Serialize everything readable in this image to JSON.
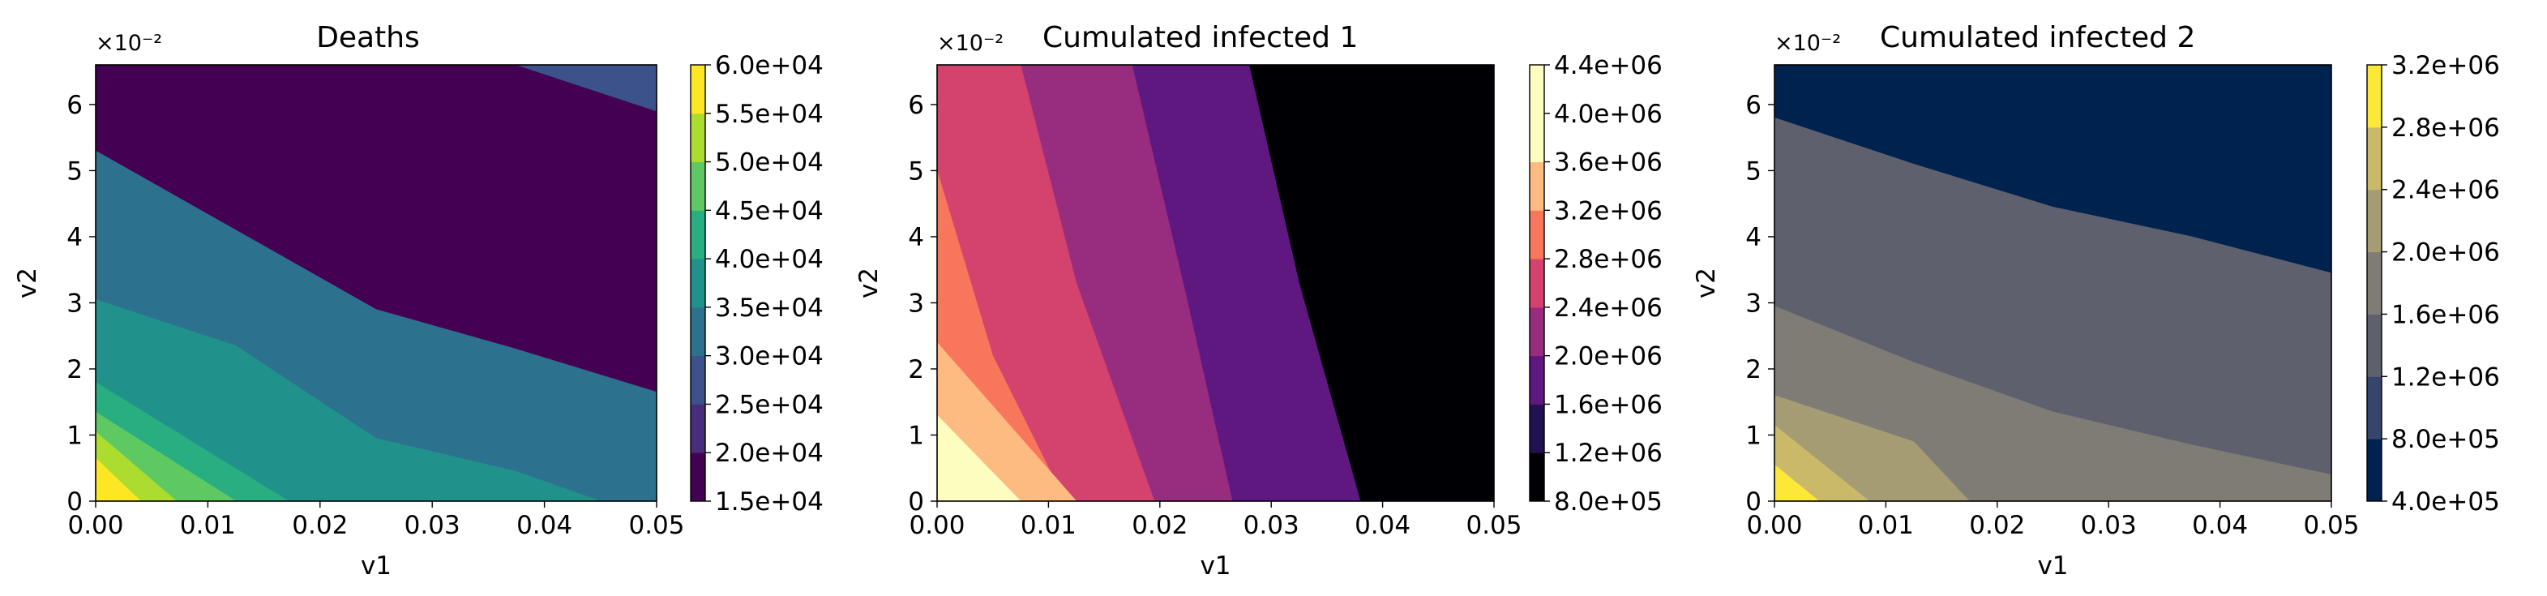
{
  "chart_data": [
    {
      "type": "heatmap",
      "title": "Deaths",
      "xlabel": "v1",
      "ylabel": "v2",
      "y_offset_label": "×10⁻²",
      "xlim": [
        0,
        0.05
      ],
      "ylim": [
        0,
        6.6
      ],
      "xticks": [
        "0.00",
        "0.01",
        "0.02",
        "0.03",
        "0.04",
        "0.05"
      ],
      "xtick_values": [
        0,
        0.01,
        0.02,
        0.03,
        0.04,
        0.05
      ],
      "yticks": [
        "0",
        "1",
        "2",
        "3",
        "4",
        "5",
        "6"
      ],
      "yticks_values": [
        0,
        1,
        2,
        3,
        4,
        5,
        6
      ],
      "grid": false,
      "colormap": "viridis",
      "colorbar_levels": [
        15000,
        20000,
        25000,
        30000,
        35000,
        40000,
        45000,
        50000,
        55000,
        60000
      ],
      "colorbar_ticks": [
        "1.5e+04",
        "2.0e+04",
        "2.5e+04",
        "3.0e+04",
        "3.5e+04",
        "4.0e+04",
        "4.5e+04",
        "5.0e+04",
        "5.5e+04",
        "6.0e+04"
      ],
      "band_colors": [
        "#440154",
        "#472d7b",
        "#3b528b",
        "#2c728e",
        "#21918c",
        "#28ae80",
        "#5ec962",
        "#addc30",
        "#fde725"
      ],
      "contour_boundaries": [
        {
          "level": 55000,
          "points": [
            [
              0,
              0.65
            ],
            [
              0.004,
              0
            ]
          ]
        },
        {
          "level": 50000,
          "points": [
            [
              0,
              1.05
            ],
            [
              0.0072,
              0
            ]
          ]
        },
        {
          "level": 45000,
          "points": [
            [
              0,
              1.35
            ],
            [
              0.0125,
              0
            ]
          ]
        },
        {
          "level": 40000,
          "points": [
            [
              0,
              1.8
            ],
            [
              0.0172,
              0
            ]
          ]
        },
        {
          "level": 35000,
          "points": [
            [
              0,
              3.05
            ],
            [
              0.0125,
              2.35
            ],
            [
              0.025,
              0.95
            ],
            [
              0.0375,
              0.45
            ],
            [
              0.045,
              0
            ]
          ]
        },
        {
          "level": 30000,
          "points": [
            [
              0,
              5.3
            ],
            [
              0.0125,
              4.1
            ],
            [
              0.025,
              2.9
            ],
            [
              0.0375,
              2.3
            ],
            [
              0.05,
              1.65
            ]
          ]
        },
        {
          "level": 25000,
          "points": [
            [
              0.0375,
              6.6
            ],
            [
              0.05,
              5.9
            ]
          ]
        }
      ]
    },
    {
      "type": "heatmap",
      "title": "Cumulated infected 1",
      "xlabel": "v1",
      "ylabel": "v2",
      "y_offset_label": "×10⁻²",
      "xlim": [
        0,
        0.05
      ],
      "ylim": [
        0,
        6.6
      ],
      "xticks": [
        "0.00",
        "0.01",
        "0.02",
        "0.03",
        "0.04",
        "0.05"
      ],
      "xtick_values": [
        0,
        0.01,
        0.02,
        0.03,
        0.04,
        0.05
      ],
      "yticks": [
        "0",
        "1",
        "2",
        "3",
        "4",
        "5",
        "6"
      ],
      "yticks_values": [
        0,
        1,
        2,
        3,
        4,
        5,
        6
      ],
      "grid": false,
      "colormap": "magma",
      "colorbar_levels": [
        800000,
        1200000,
        1600000,
        2000000,
        2400000,
        2800000,
        3200000,
        3600000,
        4000000,
        4400000
      ],
      "colorbar_ticks": [
        "8.0e+05",
        "1.2e+06",
        "1.6e+06",
        "2.0e+06",
        "2.4e+06",
        "2.8e+06",
        "3.2e+06",
        "3.6e+06",
        "4.0e+06",
        "4.4e+06"
      ],
      "band_colors": [
        "#000004",
        "#221150",
        "#5f187f",
        "#982d80",
        "#d3436e",
        "#f8765c",
        "#febb81",
        "#fcfdbf",
        "#fcfdbf"
      ],
      "contour_boundaries": [
        {
          "level": 4000000,
          "points": [
            [
              0,
              0.7
            ],
            [
              0.004,
              0
            ]
          ]
        },
        {
          "level": 3600000,
          "points": [
            [
              0,
              1.3
            ],
            [
              0.0075,
              0
            ]
          ]
        },
        {
          "level": 3200000,
          "points": [
            [
              0,
              2.4
            ],
            [
              0.0125,
              0
            ]
          ]
        },
        {
          "level": 2800000,
          "points": [
            [
              0,
              5.0
            ],
            [
              0.005,
              2.2
            ],
            [
              0.0115,
              0
            ]
          ]
        },
        {
          "level": 2400000,
          "points": [
            [
              0.0075,
              6.6
            ],
            [
              0.0125,
              3.3
            ],
            [
              0.0195,
              0
            ]
          ]
        },
        {
          "level": 2000000,
          "points": [
            [
              0.0175,
              6.6
            ],
            [
              0.0225,
              3.0
            ],
            [
              0.0265,
              0
            ]
          ]
        },
        {
          "level": 1600000,
          "points": [
            [
              0.028,
              6.6
            ],
            [
              0.0325,
              3.3
            ],
            [
              0.038,
              0
            ]
          ]
        }
      ]
    },
    {
      "type": "heatmap",
      "title": "Cumulated infected 2",
      "xlabel": "v1",
      "ylabel": "v2",
      "y_offset_label": "×10⁻²",
      "xlim": [
        0,
        0.05
      ],
      "ylim": [
        0,
        6.6
      ],
      "xticks": [
        "0.00",
        "0.01",
        "0.02",
        "0.03",
        "0.04",
        "0.05"
      ],
      "xtick_values": [
        0,
        0.01,
        0.02,
        0.03,
        0.04,
        0.05
      ],
      "yticks": [
        "0",
        "1",
        "2",
        "3",
        "4",
        "5",
        "6"
      ],
      "yticks_values": [
        0,
        1,
        2,
        3,
        4,
        5,
        6
      ],
      "grid": false,
      "colormap": "cividis",
      "colorbar_levels": [
        400000,
        800000,
        1200000,
        1600000,
        2000000,
        2400000,
        2800000,
        3200000
      ],
      "colorbar_ticks": [
        "4.0e+05",
        "8.0e+05",
        "1.2e+06",
        "1.6e+06",
        "2.0e+06",
        "2.4e+06",
        "2.8e+06",
        "3.2e+06"
      ],
      "band_colors": [
        "#00224e",
        "#35456c",
        "#5e606e",
        "#7f7c75",
        "#a59c74",
        "#cab969",
        "#fde737"
      ],
      "contour_boundaries": [
        {
          "level": 2800000,
          "points": [
            [
              0,
              0.55
            ],
            [
              0.004,
              0
            ]
          ]
        },
        {
          "level": 2400000,
          "points": [
            [
              0,
              1.15
            ],
            [
              0.0085,
              0
            ]
          ]
        },
        {
          "level": 2000000,
          "points": [
            [
              0,
              1.6
            ],
            [
              0.0125,
              0.9
            ],
            [
              0.0175,
              0
            ]
          ]
        },
        {
          "level": 1600000,
          "points": [
            [
              0,
              2.95
            ],
            [
              0.0125,
              2.1
            ],
            [
              0.025,
              1.35
            ],
            [
              0.0375,
              0.85
            ],
            [
              0.05,
              0.4
            ]
          ]
        },
        {
          "level": 1200000,
          "points": [
            [
              0,
              5.8
            ],
            [
              0.0125,
              5.1
            ],
            [
              0.025,
              4.45
            ],
            [
              0.0375,
              4.0
            ],
            [
              0.05,
              3.45
            ]
          ]
        }
      ]
    }
  ]
}
